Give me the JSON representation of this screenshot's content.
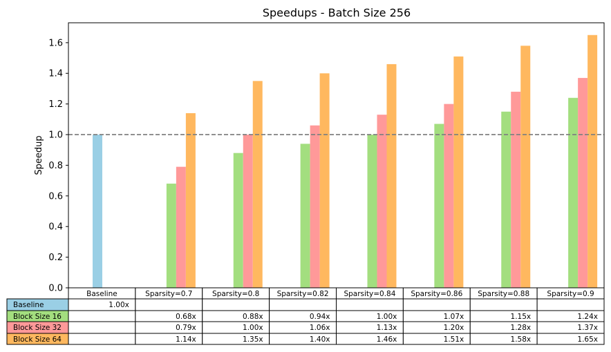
{
  "chart_data": {
    "type": "bar",
    "title": "Speedups - Batch Size 256",
    "xlabel": "",
    "ylabel": "Speedup",
    "ylim": [
      0,
      1.73
    ],
    "yticks": [
      "0.0",
      "0.2",
      "0.4",
      "0.6",
      "0.8",
      "1.0",
      "1.2",
      "1.4",
      "1.6"
    ],
    "grid": false,
    "reference_line": {
      "y": 1.0,
      "style": "dashed",
      "color": "#808080"
    },
    "categories": [
      "Baseline",
      "Sparsity=0.7",
      "Sparsity=0.8",
      "Sparsity=0.82",
      "Sparsity=0.84",
      "Sparsity=0.86",
      "Sparsity=0.88",
      "Sparsity=0.9"
    ],
    "series": [
      {
        "name": "Baseline",
        "color": "#9ACFE5",
        "values": [
          1.0,
          null,
          null,
          null,
          null,
          null,
          null,
          null
        ]
      },
      {
        "name": "Block Size 16",
        "color": "#A3DE7F",
        "values": [
          null,
          0.68,
          0.88,
          0.94,
          1.0,
          1.07,
          1.15,
          1.24
        ]
      },
      {
        "name": "Block Size 32",
        "color": "#FF9999",
        "values": [
          null,
          0.79,
          1.0,
          1.06,
          1.13,
          1.2,
          1.28,
          1.37
        ]
      },
      {
        "name": "Block Size 64",
        "color": "#FFB85F",
        "values": [
          null,
          1.14,
          1.35,
          1.4,
          1.46,
          1.51,
          1.58,
          1.65
        ]
      }
    ],
    "table": {
      "rows": [
        [
          "1.00x",
          "",
          "",
          "",
          "",
          "",
          "",
          ""
        ],
        [
          "",
          "0.68x",
          "0.88x",
          "0.94x",
          "1.00x",
          "1.07x",
          "1.15x",
          "1.24x"
        ],
        [
          "",
          "0.79x",
          "1.00x",
          "1.06x",
          "1.13x",
          "1.20x",
          "1.28x",
          "1.37x"
        ],
        [
          "",
          "1.14x",
          "1.35x",
          "1.40x",
          "1.46x",
          "1.51x",
          "1.58x",
          "1.65x"
        ]
      ]
    }
  }
}
